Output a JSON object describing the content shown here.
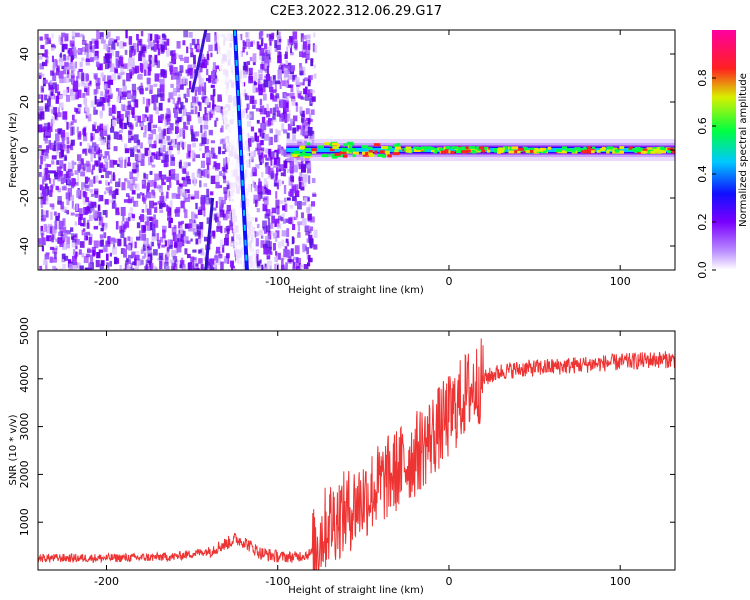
{
  "title": "C2E3.2022.312.06.29.G17",
  "chart_data": [
    {
      "type": "heatmap",
      "xlabel": "Height of straight line (km)",
      "ylabel": "Frequency (Hz)",
      "xlim": [
        -240,
        132
      ],
      "ylim": [
        -50,
        50
      ],
      "xticks": [
        -200,
        -100,
        0,
        100
      ],
      "yticks": [
        -40,
        -20,
        0,
        20,
        40
      ],
      "colorbar": {
        "label": "Normalized spectral amplitude",
        "range": [
          0.0,
          1.0
        ],
        "ticks": [
          0.0,
          0.2,
          0.4,
          0.6,
          0.8
        ],
        "colors": [
          "#ffffff",
          "#b98cff",
          "#7a00ff",
          "#1010ff",
          "#00c8ff",
          "#00ff40",
          "#d8f000",
          "#ff2020",
          "#ff00a0"
        ]
      },
      "features": {
        "noise_region_x": [
          -240,
          -83
        ],
        "signal_line": {
          "x_start": -95,
          "x_end": 132,
          "frequency": 0
        },
        "diagonal_trace": {
          "x_at_top": -125,
          "x_at_bottom": -118
        }
      }
    },
    {
      "type": "line",
      "xlabel": "Height of straight line (km)",
      "ylabel": "SNR (10 * v/v)",
      "xlim": [
        -240,
        132
      ],
      "ylim": [
        0,
        5000
      ],
      "xticks": [
        -200,
        -100,
        0,
        100
      ],
      "yticks": [
        1000,
        2000,
        3000,
        4000,
        5000
      ],
      "series": [
        {
          "color": "#ee3333",
          "x": [
            -240,
            -220,
            -200,
            -180,
            -160,
            -140,
            -130,
            -125,
            -120,
            -110,
            -100,
            -90,
            -80,
            -75,
            -70,
            -60,
            -50,
            -40,
            -30,
            -20,
            -10,
            0,
            10,
            20,
            30,
            40,
            60,
            80,
            100,
            120,
            132
          ],
          "y": [
            250,
            250,
            250,
            260,
            280,
            400,
            550,
            650,
            600,
            350,
            280,
            270,
            350,
            700,
            1000,
            1200,
            1500,
            1800,
            2100,
            2400,
            2800,
            3200,
            3700,
            4000,
            4150,
            4200,
            4250,
            4300,
            4350,
            4400,
            4400
          ]
        }
      ]
    }
  ]
}
